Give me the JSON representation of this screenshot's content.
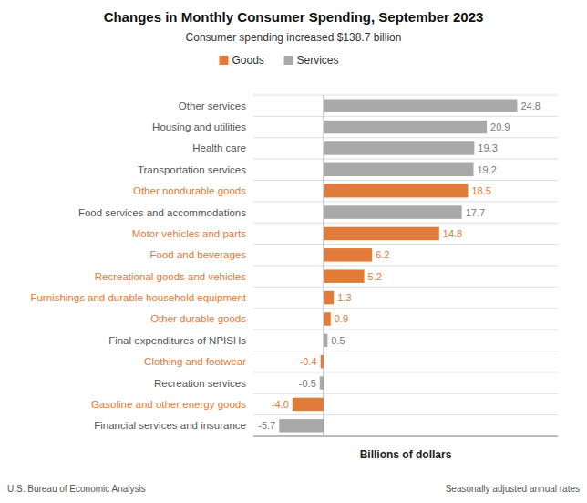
{
  "chart_data": {
    "type": "bar",
    "orientation": "horizontal",
    "title": "Changes in Monthly Consumer Spending, September 2023",
    "subtitle": "Consumer spending increased $138.7 billion",
    "xlabel": "Billions of dollars",
    "annotations": [
      "U.S. Bureau of Economic Analysis",
      "Seasonally adjusted annual rates"
    ],
    "categories": [
      "Other services",
      "Housing and utilities",
      "Health care",
      "Transportation services",
      "Other nondurable goods",
      "Food services and accommodations",
      "Motor vehicles and parts",
      "Food and beverages",
      "Recreational goods and vehicles",
      "Furnishings and durable household equipment",
      "Other durable goods",
      "Final expenditures of NPISHs",
      "Clothing and footwear",
      "Recreation services",
      "Gasoline and other energy goods",
      "Financial services and insurance"
    ],
    "series": [
      {
        "name": "Goods",
        "color": "#E07B39",
        "values": [
          null,
          null,
          null,
          null,
          18.5,
          null,
          14.8,
          6.2,
          5.2,
          1.3,
          0.9,
          null,
          -0.4,
          null,
          -4.0,
          null
        ],
        "value_labels": [
          null,
          null,
          null,
          null,
          "18.5",
          null,
          "14.8",
          "6.2",
          "5.2",
          "1.3",
          "0.9",
          null,
          "-0.4",
          null,
          "-4.0",
          null
        ]
      },
      {
        "name": "Services",
        "color": "#A9A9A9",
        "values": [
          24.8,
          20.9,
          19.3,
          19.2,
          null,
          17.7,
          null,
          null,
          null,
          null,
          null,
          0.5,
          null,
          -0.5,
          null,
          -5.7
        ],
        "value_labels": [
          "24.8",
          "20.9",
          "19.3",
          "19.2",
          null,
          "17.7",
          null,
          null,
          null,
          null,
          null,
          "0.5",
          null,
          "-0.5",
          null,
          "-5.7"
        ]
      }
    ],
    "xlim": [
      -9,
      30
    ],
    "grid": true,
    "legend": "top",
    "data_labels": true,
    "tick_labels": "y"
  }
}
